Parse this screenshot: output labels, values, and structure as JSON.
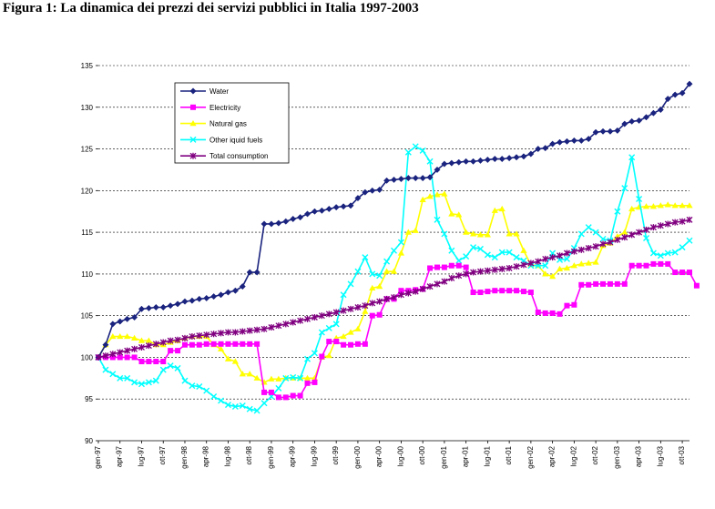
{
  "figure": {
    "caption": "Figura 1: La dinamica dei prezzi dei servizi pubblici in Italia 1997-2003"
  },
  "chart_data": {
    "type": "line",
    "title": "",
    "xlabel": "",
    "ylabel": "",
    "ylim": [
      90,
      135
    ],
    "yticks": [
      90,
      95,
      100,
      105,
      110,
      115,
      120,
      125,
      130,
      135
    ],
    "grid": "horizontal dashed",
    "legend_position": "top-left inside plot",
    "x_labels": [
      "gen-97",
      "apr-97",
      "lug-97",
      "ott-97",
      "gen-98",
      "apr-98",
      "lug-98",
      "ott-98",
      "gen-99",
      "apr-99",
      "lug-99",
      "ott-99",
      "gen-00",
      "apr-00",
      "lug-00",
      "ott-00",
      "gen-01",
      "apr-01",
      "lug-01",
      "ott-01",
      "gen-02",
      "apr-02",
      "lug-02",
      "ott-02",
      "gen-03",
      "apr-03",
      "lug-03",
      "ott-03"
    ],
    "series": [
      {
        "name": "Water",
        "color": "#1a237e",
        "marker": "diamond",
        "values": [
          100,
          101.5,
          104,
          104.3,
          104.6,
          104.8,
          105.8,
          105.9,
          106,
          106,
          106.2,
          106.4,
          106.7,
          106.8,
          107,
          107.1,
          107.3,
          107.5,
          107.8,
          108,
          108.5,
          110.2,
          110.2,
          116,
          116,
          116.1,
          116.3,
          116.6,
          116.8,
          117.2,
          117.5,
          117.6,
          117.8,
          118,
          118.1,
          118.2,
          119.1,
          119.8,
          120,
          120.1,
          121.2,
          121.3,
          121.4,
          121.5,
          121.5,
          121.5,
          121.6,
          122.5,
          123.2,
          123.3,
          123.4,
          123.5,
          123.5,
          123.6,
          123.7,
          123.8,
          123.8,
          123.9,
          124,
          124.1,
          124.4,
          125,
          125.1,
          125.6,
          125.8,
          125.9,
          126,
          126,
          126.2,
          127,
          127.1,
          127.1,
          127.2,
          128,
          128.3,
          128.4,
          128.8,
          129.3,
          129.7,
          131,
          131.5,
          131.7,
          132.8
        ]
      },
      {
        "name": "Electricity",
        "color": "#ff00ff",
        "marker": "square",
        "values": [
          100,
          100,
          100,
          100,
          100,
          100,
          99.5,
          99.5,
          99.5,
          99.5,
          100.8,
          100.8,
          101.5,
          101.5,
          101.5,
          101.6,
          101.6,
          101.6,
          101.6,
          101.6,
          101.6,
          101.6,
          101.6,
          95.8,
          95.8,
          95.2,
          95.2,
          95.4,
          95.4,
          96.9,
          97,
          100.1,
          101.9,
          101.9,
          101.5,
          101.5,
          101.6,
          101.6,
          105,
          105.1,
          107,
          107,
          108,
          108,
          108.1,
          108.2,
          110.7,
          110.8,
          110.8,
          111,
          111,
          110.8,
          107.8,
          107.8,
          107.9,
          108,
          108,
          108,
          108,
          107.9,
          107.8,
          105.4,
          105.3,
          105.3,
          105.2,
          106.2,
          106.3,
          108.7,
          108.7,
          108.8,
          108.8,
          108.8,
          108.8,
          108.8,
          111,
          111,
          111,
          111.2,
          111.2,
          111.2,
          110.2,
          110.2,
          110.2,
          108.6
        ]
      },
      {
        "name": "Natural gas",
        "color": "#ffff00",
        "marker": "triangle",
        "values": [
          100,
          101.5,
          102.5,
          102.5,
          102.5,
          102.3,
          102,
          102,
          101.5,
          101.5,
          101.8,
          102,
          102.3,
          102.5,
          102.5,
          102.5,
          101.5,
          101,
          99.8,
          99.5,
          98,
          98,
          97.5,
          97,
          97.4,
          97.4,
          97.5,
          97.5,
          97.5,
          97.5,
          97.5,
          100,
          100.2,
          102.3,
          102.5,
          103,
          103.4,
          105.5,
          108.3,
          108.5,
          110.3,
          110.3,
          112.5,
          115,
          115.2,
          118.9,
          119.3,
          119.5,
          119.6,
          117.2,
          117.1,
          115,
          114.8,
          114.7,
          114.7,
          117.6,
          117.8,
          114.8,
          114.8,
          112.8,
          111.1,
          111,
          110,
          109.7,
          110.6,
          110.7,
          111,
          111.2,
          111.3,
          111.4,
          113.4,
          113.7,
          114.5,
          115,
          117.8,
          118,
          118.1,
          118.1,
          118.2,
          118.3,
          118.2,
          118.2,
          118.2
        ]
      },
      {
        "name": "Other iquid fuels",
        "color": "#00ffff",
        "marker": "x",
        "values": [
          100,
          98.5,
          98,
          97.5,
          97.5,
          97,
          96.8,
          97,
          97.2,
          98.5,
          99,
          98.7,
          97.2,
          96.6,
          96.5,
          96,
          95.3,
          94.8,
          94.3,
          94.1,
          94.2,
          93.8,
          93.6,
          94.5,
          95.3,
          96.3,
          97.5,
          97.6,
          97.5,
          99.8,
          100.5,
          103,
          103.5,
          104,
          107.5,
          108.8,
          110.3,
          112,
          110,
          109.8,
          111.5,
          112.8,
          113.8,
          124.6,
          125.3,
          124.8,
          123.5,
          116.5,
          114.8,
          112.8,
          111.6,
          112.1,
          113.2,
          113,
          112.3,
          112,
          112.6,
          112.6,
          112,
          111.6,
          111,
          111,
          111,
          112.5,
          111.7,
          111.8,
          113.1,
          114.8,
          115.6,
          115,
          114.2,
          114,
          117.5,
          120.3,
          124,
          119,
          114.3,
          112.5,
          112.2,
          112.5,
          112.6,
          113.2,
          114
        ]
      },
      {
        "name": "Total consumption",
        "color": "#800080",
        "marker": "star",
        "values": [
          100,
          100.2,
          100.4,
          100.6,
          100.8,
          101,
          101.2,
          101.4,
          101.6,
          101.8,
          102,
          102.1,
          102.3,
          102.5,
          102.6,
          102.7,
          102.8,
          102.9,
          103,
          103,
          103.1,
          103.2,
          103.3,
          103.4,
          103.6,
          103.8,
          104,
          104.2,
          104.4,
          104.6,
          104.8,
          105,
          105.2,
          105.4,
          105.6,
          105.8,
          106,
          106.2,
          106.5,
          106.7,
          107,
          107.2,
          107.5,
          107.7,
          107.9,
          108.2,
          108.5,
          108.8,
          109.1,
          109.5,
          109.8,
          110,
          110.2,
          110.3,
          110.4,
          110.5,
          110.6,
          110.7,
          110.9,
          111.1,
          111.3,
          111.5,
          111.8,
          112,
          112.2,
          112.5,
          112.7,
          112.9,
          113.1,
          113.3,
          113.6,
          113.8,
          114.1,
          114.4,
          114.7,
          115,
          115.3,
          115.6,
          115.8,
          116,
          116.2,
          116.3,
          116.5
        ]
      }
    ]
  }
}
